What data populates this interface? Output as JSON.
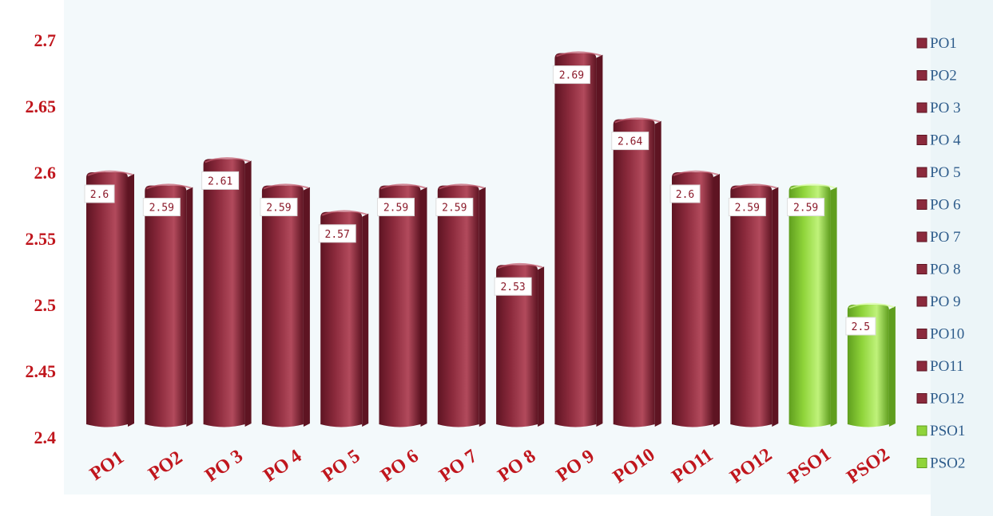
{
  "chart_data": {
    "type": "bar",
    "categories": [
      "PO1",
      "PO2",
      "PO 3",
      "PO 4",
      "PO 5",
      "PO 6",
      "PO 7",
      "PO 8",
      "PO 9",
      "PO10",
      "PO11",
      "PO12",
      "PSO1",
      "PSO2"
    ],
    "values": [
      2.6,
      2.59,
      2.61,
      2.59,
      2.57,
      2.59,
      2.59,
      2.53,
      2.69,
      2.64,
      2.6,
      2.59,
      2.59,
      2.5
    ],
    "data_labels": [
      "2.6",
      "2.59",
      "2.61",
      "2.59",
      "2.57",
      "2.59",
      "2.59",
      "2.53",
      "2.69",
      "2.64",
      "2.6",
      "2.59",
      "2.59",
      "2.5"
    ],
    "ylim": [
      2.4,
      2.7
    ],
    "yticks": [
      2.4,
      2.45,
      2.5,
      2.55,
      2.6,
      2.65,
      2.7
    ],
    "ytick_labels": [
      "2.4",
      "2.45",
      "2.5",
      "2.55",
      "2.6",
      "2.65",
      "2.7"
    ],
    "legend": [
      "PO1",
      "PO2",
      "PO 3",
      "PO 4",
      "PO 5",
      "PO 6",
      "PO 7",
      "PO 8",
      "PO 9",
      "PO10",
      "PO11",
      "PO12",
      "PSO1",
      "PSO2"
    ],
    "legend_position": "right",
    "grid": false,
    "bar_style": "3d-cylinder",
    "colors": {
      "po": "#8b2a3c",
      "po_dark": "#5e1422",
      "po_light": "#b24a5c",
      "pso": "#8fd43a",
      "pso_dark": "#5f9e1e",
      "pso_light": "#bff27a",
      "axis_text": "#c0161d",
      "legend_text": "#2f5d8c",
      "background_panel": "#f3f9fb"
    }
  }
}
